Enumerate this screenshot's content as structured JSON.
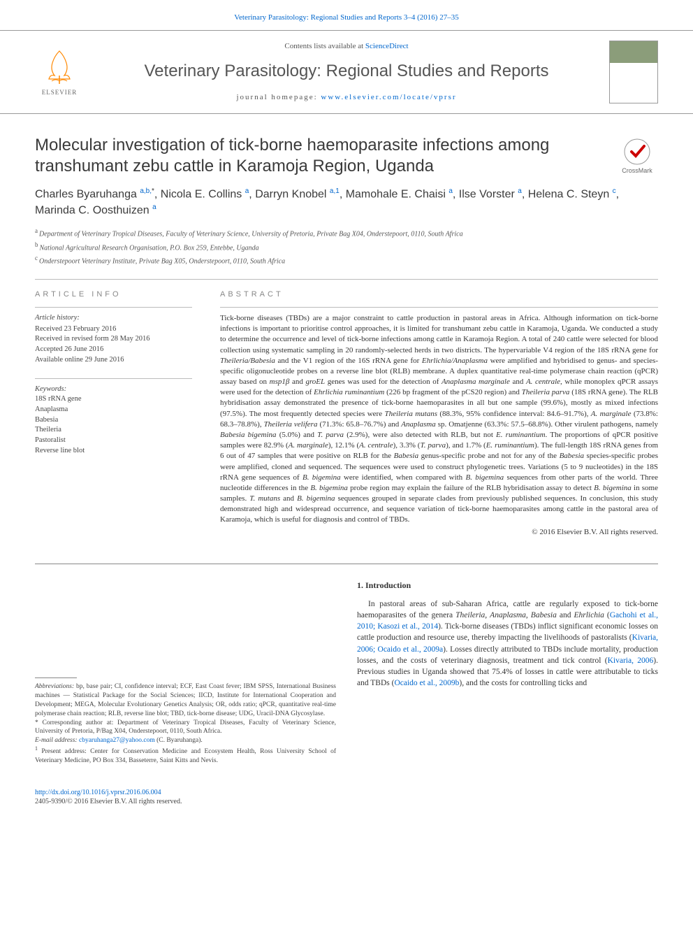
{
  "top_link": "Veterinary Parasitology: Regional Studies and Reports 3–4 (2016) 27–35",
  "masthead": {
    "contents_prefix": "Contents lists available at ",
    "contents_link": "ScienceDirect",
    "journal_name": "Veterinary Parasitology: Regional Studies and Reports",
    "homepage_prefix": "journal homepage: ",
    "homepage_url": "www.elsevier.com/locate/vprsr",
    "publisher_label": "ELSEVIER"
  },
  "article": {
    "title": "Molecular investigation of tick-borne haemoparasite infections among transhumant zebu cattle in Karamoja Region, Uganda",
    "crossmark_label": "CrossMark",
    "authors_html": "Charles Byaruhanga <sup>a,b,</sup><sup class='star'>*</sup>, Nicola E. Collins <sup>a</sup>, Darryn Knobel <sup>a,1</sup>, Mamohale E. Chaisi <sup>a</sup>, Ilse Vorster <sup>a</sup>, Helena C. Steyn <sup>c</sup>, Marinda C. Oosthuizen <sup>a</sup>",
    "affiliations": [
      {
        "label": "a",
        "text": "Department of Veterinary Tropical Diseases, Faculty of Veterinary Science, University of Pretoria, Private Bag X04, Onderstepoort, 0110, South Africa"
      },
      {
        "label": "b",
        "text": "National Agricultural Research Organisation, P.O. Box 259, Entebbe, Uganda"
      },
      {
        "label": "c",
        "text": "Onderstepoort Veterinary Institute, Private Bag X05, Onderstepoort, 0110, South Africa"
      }
    ]
  },
  "info": {
    "article_info_label": "article info",
    "history_heading": "Article history:",
    "history": [
      "Received 23 February 2016",
      "Received in revised form 28 May 2016",
      "Accepted 26 June 2016",
      "Available online 29 June 2016"
    ],
    "keywords_heading": "Keywords:",
    "keywords": [
      "18S rRNA gene",
      "Anaplasma",
      "Babesia",
      "Theileria",
      "Pastoralist",
      "Reverse line blot"
    ]
  },
  "abstract": {
    "label": "abstract",
    "text_html": "Tick-borne diseases (TBDs) are a major constraint to cattle production in pastoral areas in Africa. Although information on tick-borne infections is important to prioritise control approaches, it is limited for transhumant zebu cattle in Karamoja, Uganda. We conducted a study to determine the occurrence and level of tick-borne infections among cattle in Karamoja Region. A total of 240 cattle were selected for blood collection using systematic sampling in 20 randomly-selected herds in two districts. The hypervariable V4 region of the 18S rRNA gene for <em>Theileria/Babesia</em> and the V1 region of the 16S rRNA gene for <em>Ehrlichia/Anaplasma</em> were amplified and hybridised to genus- and species-specific oligonucleotide probes on a reverse line blot (RLB) membrane. A duplex quantitative real-time polymerase chain reaction (qPCR) assay based on <em>msp1β</em> and <em>groEL</em> genes was used for the detection of <em>Anaplasma marginale</em> and <em>A. centrale</em>, while monoplex qPCR assays were used for the detection of <em>Ehrlichia ruminantium</em> (226 bp fragment of the pCS20 region) and <em>Theileria parva</em> (18S rRNA gene). The RLB hybridisation assay demonstrated the presence of tick-borne haemoparasites in all but one sample (99.6%), mostly as mixed infections (97.5%). The most frequently detected species were <em>Theileria mutans</em> (88.3%, 95% confidence interval: 84.6–91.7%), <em>A. marginale</em> (73.8%: 68.3–78.8%), <em>Theileria velifera</em> (71.3%: 65.8–76.7%) and <em>Anaplasma</em> sp. Omatjenne (63.3%: 57.5–68.8%). Other virulent pathogens, namely <em>Babesia bigemina</em> (5.0%) and <em>T. parva</em> (2.9%), were also detected with RLB, but not <em>E. ruminantium</em>. The proportions of qPCR positive samples were 82.9% (<em>A. marginale</em>), 12.1% (<em>A. centrale</em>), 3.3% (<em>T. parva</em>), and 1.7% (<em>E. ruminantium</em>). The full-length 18S rRNA genes from 6 out of 47 samples that were positive on RLB for the <em>Babesia</em> genus-specific probe and not for any of the <em>Babesia</em> species-specific probes were amplified, cloned and sequenced. The sequences were used to construct phylogenetic trees. Variations (5 to 9 nucleotides) in the 18S rRNA gene sequences of <em>B. bigemina</em> were identified, when compared with <em>B. bigemina</em> sequences from other parts of the world. Three nucleotide differences in the <em>B. bigemina</em> probe region may explain the failure of the RLB hybridisation assay to detect <em>B. bigemina</em> in some samples. <em>T. mutans</em> and <em>B. bigemina</em> sequences grouped in separate clades from previously published sequences. In conclusion, this study demonstrated high and widespread occurrence, and sequence variation of tick-borne haemoparasites among cattle in the pastoral area of Karamoja, which is useful for diagnosis and control of TBDs.",
    "copyright": "© 2016 Elsevier B.V. All rights reserved."
  },
  "footnotes": {
    "abbreviations_label": "Abbreviations:",
    "abbreviations": "bp, base pair; CI, confidence interval; ECF, East Coast fever; IBM SPSS, International Business machines — Statistical Package for the Social Sciences; IICD, Institute for International Cooperation and Development; MEGA, Molecular Evolutionary Genetics Analysis; OR, odds ratio; qPCR, quantitative real-time polymerase chain reaction; RLB, reverse line blot; TBD, tick-borne disease; UDG, Uracil-DNA Glycosylase.",
    "corresponding_label": "*",
    "corresponding": "Corresponding author at: Department of Veterinary Tropical Diseases, Faculty of Veterinary Science, University of Pretoria, P/Bag X04, Onderstepoort, 0110, South Africa.",
    "email_label": "E-mail address:",
    "email": "cbyaruhanga27@yahoo.com",
    "email_attribution": "(C. Byaruhanga).",
    "present_label": "1",
    "present": "Present address: Center for Conservation Medicine and Ecosystem Health, Ross University School of Veterinary Medicine, PO Box 334, Basseterre, Saint Kitts and Nevis."
  },
  "intro": {
    "heading": "1. Introduction",
    "paragraph_html": "In pastoral areas of sub-Saharan Africa, cattle are regularly exposed to tick-borne haemoparasites of the genera <em>Theileria</em>, <em>Anaplasma</em>, <em>Babesia</em> and <em>Ehrlichia</em> (<a>Gachohi et al., 2010; Kasozi et al., 2014</a>). Tick-borne diseases (TBDs) inflict significant economic losses on cattle production and resource use, thereby impacting the livelihoods of pastoralists (<a>Kivaria, 2006; Ocaido et al., 2009a</a>). Losses directly attributed to TBDs include mortality, production losses, and the costs of veterinary diagnosis, treatment and tick control (<a>Kivaria, 2006</a>). Previous studies in Uganda showed that 75.4% of losses in cattle were attributable to ticks and TBDs (<a>Ocaido et al., 2009b</a>), and the costs for controlling ticks and"
  },
  "footer": {
    "doi": "http://dx.doi.org/10.1016/j.vprsr.2016.06.004",
    "issn_copyright": "2405-9390/© 2016 Elsevier B.V. All rights reserved."
  },
  "colors": {
    "link": "#0066cc",
    "text": "#333333",
    "muted": "#555555",
    "rule": "#bbbbbb",
    "background": "#ffffff"
  },
  "typography": {
    "body_family": "Georgia, 'Times New Roman', serif",
    "sans_family": "'Trebuchet MS', Arial, sans-serif",
    "title_size_pt": 18,
    "journal_name_size_pt": 18,
    "abstract_size_pt": 8,
    "body_size_pt": 9
  }
}
